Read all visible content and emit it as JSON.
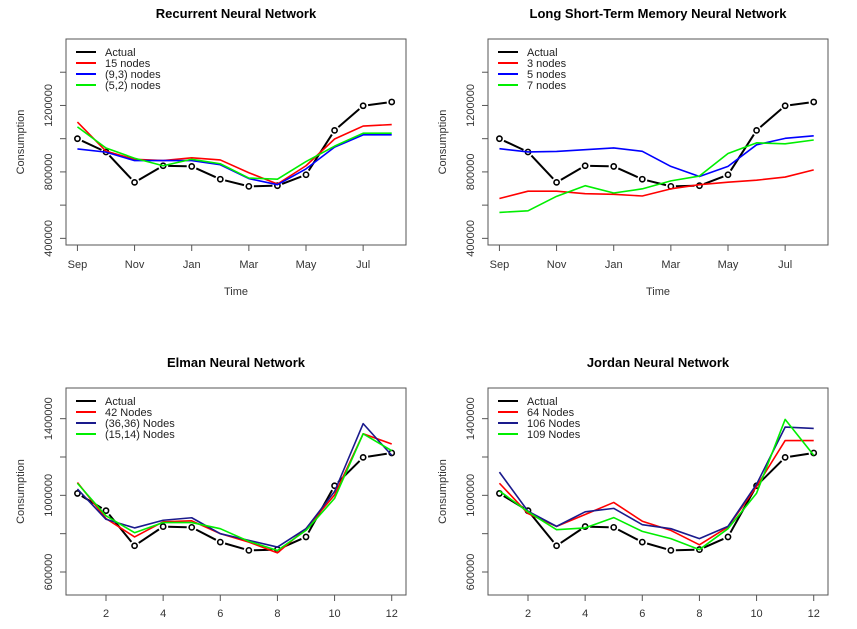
{
  "chart_data": [
    {
      "type": "line",
      "title": "Recurrent Neural Network",
      "xlabel": "Time",
      "ylabel": "Consumption",
      "x": [
        1,
        2,
        3,
        4,
        5,
        6,
        7,
        8,
        9,
        10,
        11,
        12
      ],
      "x_tick_values": [
        1,
        3,
        5,
        7,
        9,
        11
      ],
      "x_tick_labels": [
        "Sep",
        "Nov",
        "Jan",
        "Mar",
        "May",
        "Jul"
      ],
      "xlim": [
        0.6,
        12.5
      ],
      "ylim": [
        360000,
        1600000
      ],
      "y_tick_values": [
        400000,
        600000,
        800000,
        1000000,
        1200000,
        1400000
      ],
      "y_tick_labels": [
        "400000",
        "",
        "800000",
        "",
        "1200000",
        ""
      ],
      "legend_position": "top-left",
      "series": [
        {
          "name": "Actual",
          "color": "#000000",
          "markers": true,
          "dashed": true,
          "values": [
            1000000,
            920000,
            737000,
            837000,
            833000,
            756000,
            713000,
            717000,
            783000,
            1050000,
            1198000,
            1221000
          ]
        },
        {
          "name": "15 nodes",
          "color": "#ff0000",
          "values": [
            1100000,
            925000,
            876000,
            868000,
            885000,
            872000,
            795000,
            727000,
            837000,
            998000,
            1076000,
            1085000
          ]
        },
        {
          "name": "(9,3) nodes",
          "color": "#0000ff",
          "values": [
            938000,
            919000,
            868000,
            868000,
            868000,
            843000,
            760000,
            723000,
            818000,
            949000,
            1023000,
            1023000
          ]
        },
        {
          "name": "(5,2) nodes",
          "color": "#00ee00",
          "values": [
            1071000,
            944000,
            882000,
            837000,
            876000,
            849000,
            763000,
            756000,
            862000,
            955000,
            1033000,
            1033000
          ]
        }
      ]
    },
    {
      "type": "line",
      "title": "Long Short-Term Memory Neural Network",
      "xlabel": "Time",
      "ylabel": "Consumption",
      "x": [
        1,
        2,
        3,
        4,
        5,
        6,
        7,
        8,
        9,
        10,
        11,
        12
      ],
      "x_tick_values": [
        1,
        3,
        5,
        7,
        9,
        11
      ],
      "x_tick_labels": [
        "Sep",
        "Nov",
        "Jan",
        "Mar",
        "May",
        "Jul"
      ],
      "xlim": [
        0.6,
        12.5
      ],
      "ylim": [
        360000,
        1600000
      ],
      "y_tick_values": [
        400000,
        600000,
        800000,
        1000000,
        1200000,
        1400000
      ],
      "y_tick_labels": [
        "400000",
        "",
        "800000",
        "",
        "1200000",
        ""
      ],
      "legend_position": "top-left",
      "series": [
        {
          "name": "Actual",
          "color": "#000000",
          "markers": true,
          "dashed": true,
          "values": [
            1000000,
            920000,
            737000,
            837000,
            833000,
            756000,
            713000,
            717000,
            783000,
            1050000,
            1198000,
            1221000
          ]
        },
        {
          "name": "3 nodes",
          "color": "#ff0000",
          "values": [
            640000,
            684000,
            684000,
            669000,
            665000,
            655000,
            698000,
            723000,
            738000,
            750000,
            769000,
            812000
          ]
        },
        {
          "name": "5 nodes",
          "color": "#0000ff",
          "values": [
            940000,
            920000,
            923000,
            934000,
            944000,
            924000,
            833000,
            772000,
            833000,
            963000,
            1002000,
            1017000
          ]
        },
        {
          "name": "7 nodes",
          "color": "#00ee00",
          "values": [
            556000,
            566000,
            653000,
            717000,
            673000,
            698000,
            746000,
            775000,
            911000,
            975000,
            969000,
            992000
          ]
        }
      ]
    },
    {
      "type": "line",
      "title": "Elman Neural Network",
      "xlabel": "",
      "ylabel": "Consumption",
      "x": [
        1,
        2,
        3,
        4,
        5,
        6,
        7,
        8,
        9,
        10,
        11,
        12
      ],
      "x_tick_values": [
        2,
        4,
        6,
        8,
        10,
        12
      ],
      "x_tick_labels": [
        "2",
        "4",
        "6",
        "8",
        "10",
        "12"
      ],
      "xlim": [
        0.6,
        12.5
      ],
      "ylim": [
        480000,
        1560000
      ],
      "y_tick_values": [
        600000,
        800000,
        1000000,
        1200000,
        1400000
      ],
      "y_tick_labels": [
        "600000",
        "",
        "1000000",
        "",
        "1400000"
      ],
      "legend_position": "top-left",
      "series": [
        {
          "name": "Actual",
          "color": "#000000",
          "markers": true,
          "dashed": true,
          "values": [
            1010000,
            920000,
            737000,
            837000,
            833000,
            756000,
            713000,
            717000,
            783000,
            1050000,
            1198000,
            1221000
          ]
        },
        {
          "name": "42 Nodes",
          "color": "#ff0000",
          "values": [
            1067000,
            879000,
            783000,
            862000,
            867000,
            800000,
            756000,
            700000,
            826000,
            1002000,
            1321000,
            1268000
          ]
        },
        {
          "name": "(36,36) Nodes",
          "color": "#1a1a8c",
          "values": [
            1033000,
            875000,
            830000,
            870000,
            883000,
            800000,
            765000,
            730000,
            826000,
            1020000,
            1374000,
            1209000
          ]
        },
        {
          "name": "(15,14) Nodes",
          "color": "#00ee00",
          "values": [
            1063000,
            893000,
            805000,
            858000,
            858000,
            826000,
            760000,
            712000,
            817000,
            984000,
            1321000,
            1233000
          ]
        }
      ]
    },
    {
      "type": "line",
      "title": "Jordan Neural Network",
      "xlabel": "",
      "ylabel": "Consumption",
      "x": [
        1,
        2,
        3,
        4,
        5,
        6,
        7,
        8,
        9,
        10,
        11,
        12
      ],
      "x_tick_values": [
        2,
        4,
        6,
        8,
        10,
        12
      ],
      "x_tick_labels": [
        "2",
        "4",
        "6",
        "8",
        "10",
        "12"
      ],
      "xlim": [
        0.6,
        12.5
      ],
      "ylim": [
        480000,
        1560000
      ],
      "y_tick_values": [
        600000,
        800000,
        1000000,
        1200000,
        1400000
      ],
      "y_tick_labels": [
        "600000",
        "",
        "1000000",
        "",
        "1400000"
      ],
      "legend_position": "top-left",
      "series": [
        {
          "name": "Actual",
          "color": "#000000",
          "markers": true,
          "dashed": true,
          "values": [
            1010000,
            920000,
            737000,
            837000,
            833000,
            756000,
            713000,
            717000,
            783000,
            1050000,
            1198000,
            1221000
          ]
        },
        {
          "name": "64 Nodes",
          "color": "#ff0000",
          "values": [
            1063000,
            905000,
            838000,
            900000,
            963000,
            865000,
            817000,
            742000,
            835000,
            1046000,
            1286000,
            1286000
          ]
        },
        {
          "name": "106 Nodes",
          "color": "#1a1a8c",
          "values": [
            1121000,
            917000,
            838000,
            914000,
            932000,
            847000,
            826000,
            774000,
            838000,
            1058000,
            1356000,
            1349000
          ]
        },
        {
          "name": "109 Nodes",
          "color": "#00ee00",
          "values": [
            1023000,
            914000,
            821000,
            830000,
            884000,
            812000,
            774000,
            717000,
            826000,
            1011000,
            1396000,
            1209000
          ]
        }
      ]
    }
  ]
}
